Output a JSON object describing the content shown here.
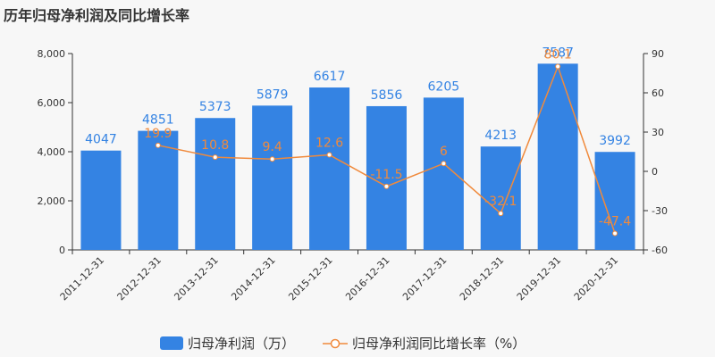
{
  "chart_data": {
    "type": "bar",
    "title": "历年归母净利润及同比增长率",
    "categories": [
      "2011-12-31",
      "2012-12-31",
      "2013-12-31",
      "2014-12-31",
      "2015-12-31",
      "2016-12-31",
      "2017-12-31",
      "2018-12-31",
      "2019-12-31",
      "2020-12-31"
    ],
    "series": [
      {
        "name": "归母净利润（万）",
        "type": "bar",
        "axis": "left",
        "color": "#3483e3",
        "values": [
          4047,
          4851,
          5373,
          5879,
          6617,
          5856,
          6205,
          4213,
          7587,
          3992
        ],
        "labels": [
          "4047",
          "4851",
          "5373",
          "5879",
          "6617",
          "5856",
          "6205",
          "4213",
          "7587",
          "3992"
        ]
      },
      {
        "name": "归母净利润同比增长率（%）",
        "type": "line",
        "axis": "right",
        "color": "#f08a3c",
        "values": [
          null,
          19.9,
          10.8,
          9.4,
          12.6,
          -11.5,
          6,
          -32.1,
          80.1,
          -47.4
        ],
        "labels": [
          "",
          "19.9",
          "10.8",
          "9.4",
          "12.6",
          "-11.5",
          "6",
          "-32.1",
          "80.1",
          "-47.4"
        ]
      }
    ],
    "y_left": {
      "ylim": [
        0,
        8000
      ],
      "ticks": [
        "0",
        "2,000",
        "4,000",
        "6,000",
        "8,000"
      ],
      "tick_values": [
        0,
        2000,
        4000,
        6000,
        8000
      ]
    },
    "y_right": {
      "ylim": [
        -60,
        90
      ],
      "ticks": [
        "-60",
        "-30",
        "0",
        "30",
        "60",
        "90"
      ],
      "tick_values": [
        -60,
        -30,
        0,
        30,
        60,
        90
      ]
    },
    "grid": false,
    "legend": "bottom-center"
  }
}
